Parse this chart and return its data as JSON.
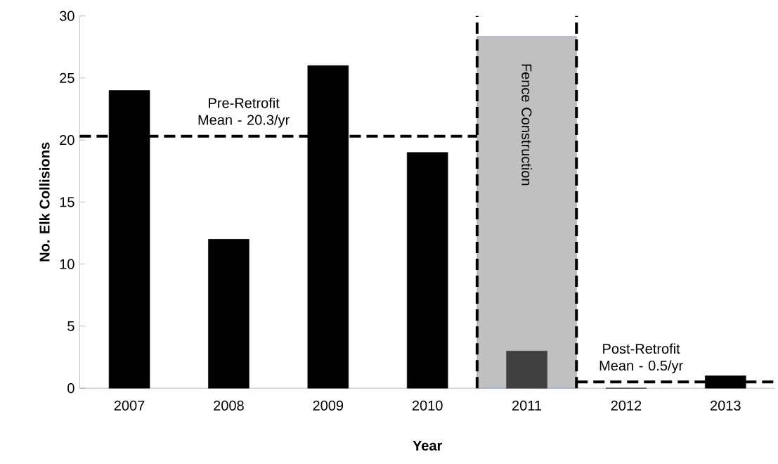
{
  "chart_data": {
    "type": "bar",
    "xlabel": "Year",
    "ylabel": "No. Elk Collisions",
    "x": [
      2007,
      2008,
      2009,
      2010,
      2011,
      2012,
      2013
    ],
    "values": [
      24,
      12,
      26,
      19,
      3,
      0,
      1
    ],
    "colors": [
      "#000000",
      "#000000",
      "#000000",
      "#000000",
      "#404040",
      "#000000",
      "#000000"
    ],
    "xlim": [
      2006.5,
      2013.5
    ],
    "xticks": [
      2007,
      2008,
      2009,
      2010,
      2011,
      2012,
      2013
    ],
    "ylim": [
      0,
      30
    ],
    "yticks": [
      0,
      5,
      10,
      15,
      20,
      25,
      30
    ],
    "bands": [
      {
        "axis": "x",
        "from": 2010.5,
        "to": 2011.5,
        "label": "Fence Construction",
        "color": "#c0c0c0"
      }
    ],
    "ref_lines": [
      {
        "axis": "y",
        "value": 20.3,
        "label": "Pre-Retrofit Mean - 20.3/yr",
        "line_style": "dashed"
      },
      {
        "axis": "y",
        "value": 0.5,
        "label": "Post-Retrofit Mean - 0.5/yr",
        "line_style": "dashed"
      },
      {
        "axis": "x",
        "value": 2010.5,
        "line_style": "dashed"
      },
      {
        "axis": "x",
        "value": 2011.5,
        "line_style": "dashed"
      }
    ]
  }
}
